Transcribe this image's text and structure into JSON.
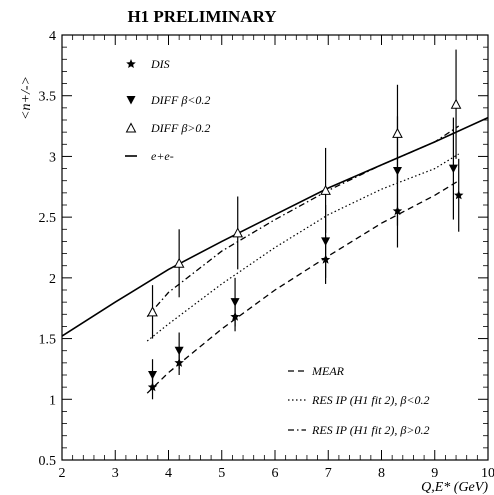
{
  "chart_data": {
    "type": "line",
    "title": "H1 PRELIMINARY",
    "xlabel": "Q,E* (GeV)",
    "ylabel": "<n+/->",
    "xlim": [
      2,
      10
    ],
    "ylim": [
      0.5,
      4
    ],
    "x_ticks": [
      "2",
      "3",
      "4",
      "5",
      "6",
      "7",
      "8",
      "9",
      "10"
    ],
    "y_ticks": [
      "0.5",
      "1",
      "1.5",
      "2",
      "2.5",
      "3",
      "3.5",
      "4"
    ],
    "grid": false,
    "point_series": [
      {
        "name": "DIS",
        "marker": "star",
        "points": [
          {
            "x": 3.7,
            "y": 1.1,
            "err": 0.1
          },
          {
            "x": 4.2,
            "y": 1.3,
            "err": 0.1
          },
          {
            "x": 5.25,
            "y": 1.68,
            "err": 0.12
          },
          {
            "x": 6.95,
            "y": 2.15,
            "err": 0.2
          },
          {
            "x": 8.3,
            "y": 2.55,
            "err": 0.3
          },
          {
            "x": 9.45,
            "y": 2.68,
            "err": 0.3
          }
        ]
      },
      {
        "name": "DIFF β<0.2",
        "marker": "triangle-down",
        "points": [
          {
            "x": 3.7,
            "y": 1.2,
            "err": 0.13
          },
          {
            "x": 4.2,
            "y": 1.4,
            "err": 0.15
          },
          {
            "x": 5.25,
            "y": 1.8,
            "err": 0.2
          },
          {
            "x": 6.95,
            "y": 2.3,
            "err": 0.3
          },
          {
            "x": 8.3,
            "y": 2.88,
            "err": 0.45
          },
          {
            "x": 9.35,
            "y": 2.9,
            "err": 0.42
          }
        ]
      },
      {
        "name": "DIFF β>0.2",
        "marker": "triangle-up",
        "points": [
          {
            "x": 3.7,
            "y": 1.72,
            "err": 0.22
          },
          {
            "x": 4.2,
            "y": 2.12,
            "err": 0.28
          },
          {
            "x": 5.3,
            "y": 2.37,
            "err": 0.3
          },
          {
            "x": 6.95,
            "y": 2.72,
            "err": 0.35
          },
          {
            "x": 8.3,
            "y": 3.19,
            "err": 0.4
          },
          {
            "x": 9.4,
            "y": 3.43,
            "err": 0.45
          }
        ]
      }
    ],
    "line_series": [
      {
        "name": "e+e-",
        "style": "solid",
        "points": [
          [
            2,
            1.52
          ],
          [
            3,
            1.8
          ],
          [
            4,
            2.07
          ],
          [
            5,
            2.3
          ],
          [
            6,
            2.52
          ],
          [
            7,
            2.74
          ],
          [
            8,
            2.93
          ],
          [
            9,
            3.12
          ],
          [
            10,
            3.32
          ]
        ]
      },
      {
        "name": "MEAR",
        "style": "dashed",
        "points": [
          [
            3.6,
            1.05
          ],
          [
            4,
            1.22
          ],
          [
            5,
            1.58
          ],
          [
            6,
            1.9
          ],
          [
            7,
            2.18
          ],
          [
            8,
            2.45
          ],
          [
            9,
            2.68
          ],
          [
            9.45,
            2.8
          ]
        ]
      },
      {
        "name": "RES IP (H1 fit 2), β<0.2",
        "style": "dotted",
        "points": [
          [
            3.6,
            1.48
          ],
          [
            4,
            1.62
          ],
          [
            5,
            1.95
          ],
          [
            6,
            2.25
          ],
          [
            7,
            2.52
          ],
          [
            8,
            2.73
          ],
          [
            9,
            2.9
          ],
          [
            9.45,
            3.02
          ]
        ]
      },
      {
        "name": "RES IP (H1 fit 2), β>0.2",
        "style": "dashdot",
        "points": [
          [
            3.6,
            1.68
          ],
          [
            4,
            1.88
          ],
          [
            5,
            2.22
          ],
          [
            6,
            2.48
          ],
          [
            7,
            2.72
          ],
          [
            8,
            2.93
          ],
          [
            9,
            3.12
          ],
          [
            9.45,
            3.25
          ]
        ]
      }
    ],
    "legend_top": [
      "DIS",
      "DIFF β<0.2",
      "DIFF β>0.2",
      "e+e-"
    ],
    "legend_bottom": [
      "MEAR",
      "RES IP (H1 fit 2), β<0.2",
      "RES IP (H1 fit 2), β>0.2"
    ]
  }
}
